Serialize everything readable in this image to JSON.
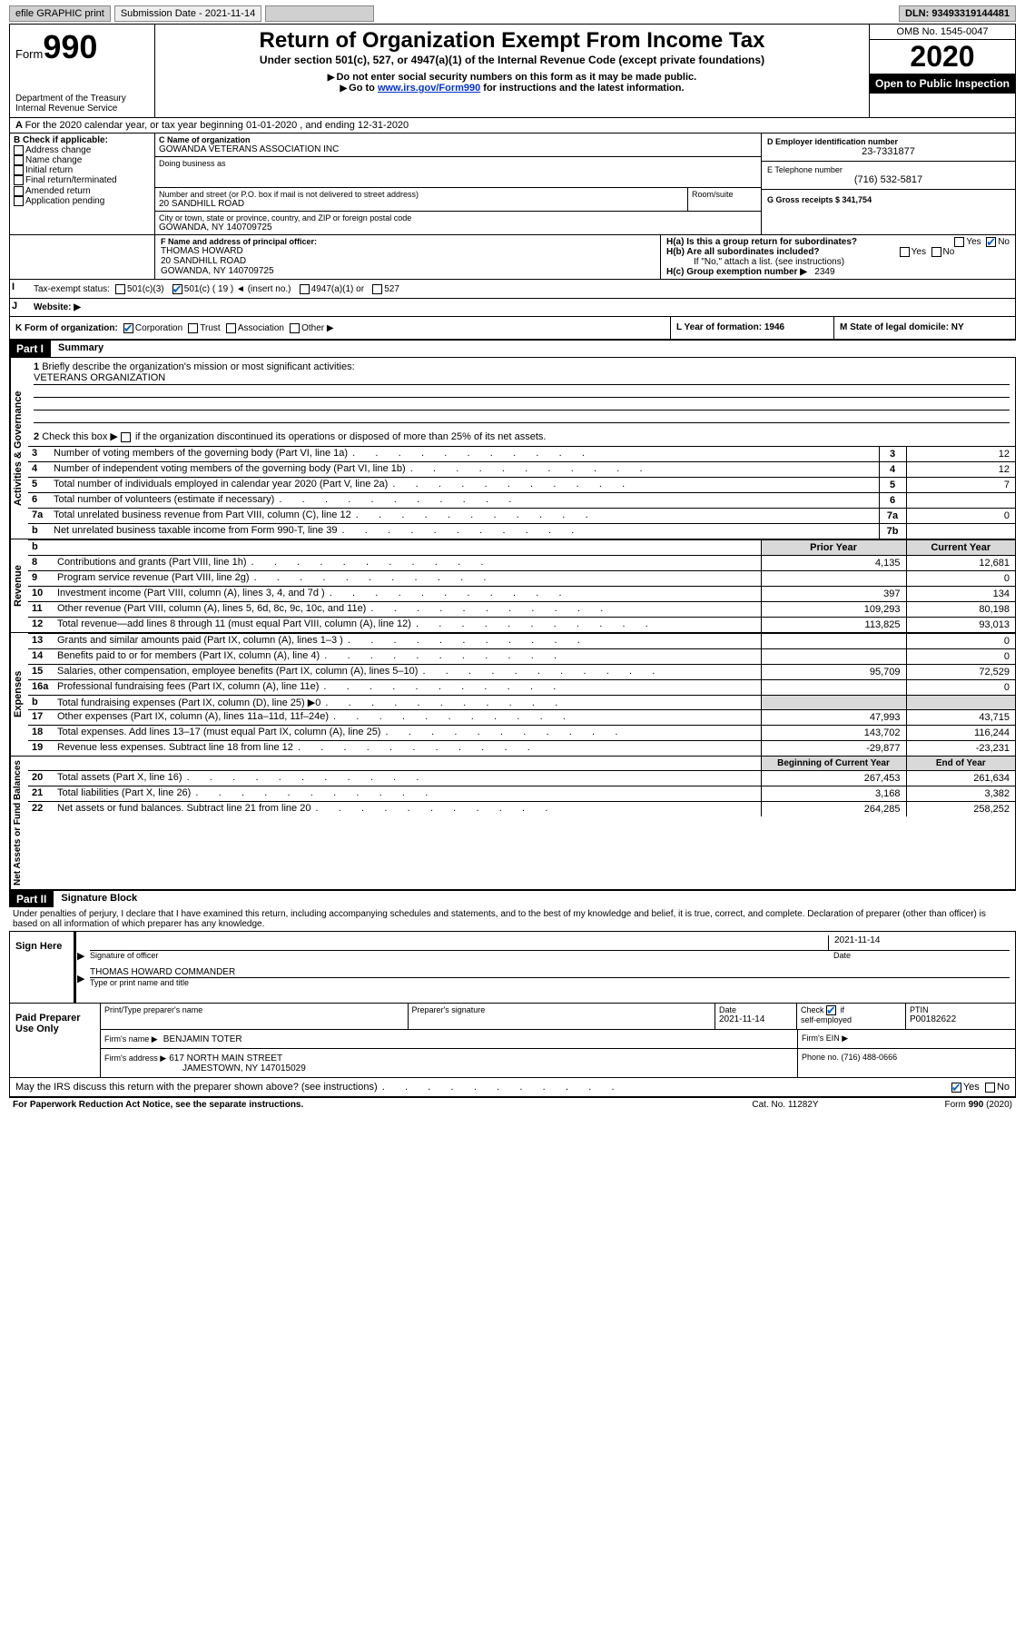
{
  "topbar": {
    "efile": "efile GRAPHIC print",
    "submission_label": "Submission Date - 2021-11-14",
    "dln": "DLN: 93493319144481"
  },
  "header": {
    "form": "Form",
    "form_number": "990",
    "dept": "Department of the Treasury",
    "irs": "Internal Revenue Service",
    "title": "Return of Organization Exempt From Income Tax",
    "subtitle": "Under section 501(c), 527, or 4947(a)(1) of the Internal Revenue Code (except private foundations)",
    "instr1": "Do not enter social security numbers on this form as it may be made public.",
    "instr2_pre": "Go to ",
    "instr2_link": "www.irs.gov/Form990",
    "instr2_post": " for instructions and the latest information.",
    "omb": "OMB No. 1545-0047",
    "year": "2020",
    "inspection": "Open to Public Inspection"
  },
  "sectionA": {
    "a_line": "For the 2020 calendar year, or tax year beginning 01-01-2020    , and ending 12-31-2020",
    "b_label": "B Check if applicable:",
    "b_items": [
      "Address change",
      "Name change",
      "Initial return",
      "Final return/terminated",
      "Amended return",
      "Application pending"
    ],
    "c_label": "C Name of organization",
    "c_name": "GOWANDA VETERANS ASSOCIATION INC",
    "dba_label": "Doing business as",
    "addr_label": "Number and street (or P.O. box if mail is not delivered to street address)",
    "room_label": "Room/suite",
    "addr": "20 SANDHILL ROAD",
    "city_label": "City or town, state or province, country, and ZIP or foreign postal code",
    "city": "GOWANDA, NY  140709725",
    "d_label": "D Employer identification number",
    "d_val": "23-7331877",
    "e_label": "E Telephone number",
    "e_val": "(716) 532-5817",
    "g_label": "G Gross receipts $ 341,754",
    "f_label": "F  Name and address of principal officer:",
    "f_name": "THOMAS HOWARD",
    "f_addr1": "20 SANDHILL ROAD",
    "f_addr2": "GOWANDA, NY  140709725",
    "ha_label": "H(a)  Is this a group return for subordinates?",
    "hb_label": "H(b)  Are all subordinates included?",
    "h_note": "If \"No,\" attach a list. (see instructions)",
    "hc_label": "H(c)  Group exemption number ▶",
    "hc_val": "2349",
    "yes": "Yes",
    "no": "No",
    "i_label": "Tax-exempt status:",
    "i_501c3": "501(c)(3)",
    "i_501c": "501(c) ( 19 ) ◄ (insert no.)",
    "i_4947": "4947(a)(1) or",
    "i_527": "527",
    "j_label": "Website: ▶",
    "k_label": "K Form of organization:",
    "k_corp": "Corporation",
    "k_trust": "Trust",
    "k_assoc": "Association",
    "k_other": "Other ▶",
    "l_label": "L Year of formation: 1946",
    "m_label": "M State of legal domicile: NY"
  },
  "part1": {
    "hdr": "Part I",
    "title": "Summary",
    "q1_label": "Briefly describe the organization's mission or most significant activities:",
    "q1_val": "VETERANS ORGANIZATION",
    "q2": "Check this box ▶        if the organization discontinued its operations or disposed of more than 25% of its net assets.",
    "rows_ag": [
      {
        "n": "3",
        "label": "Number of voting members of the governing body (Part VI, line 1a)",
        "box": "3",
        "val": "12"
      },
      {
        "n": "4",
        "label": "Number of independent voting members of the governing body (Part VI, line 1b)",
        "box": "4",
        "val": "12"
      },
      {
        "n": "5",
        "label": "Total number of individuals employed in calendar year 2020 (Part V, line 2a)",
        "box": "5",
        "val": "7"
      },
      {
        "n": "6",
        "label": "Total number of volunteers (estimate if necessary)",
        "box": "6",
        "val": ""
      },
      {
        "n": "7a",
        "label": "Total unrelated business revenue from Part VIII, column (C), line 12",
        "box": "7a",
        "val": "0"
      },
      {
        "n": "b",
        "label": "Net unrelated business taxable income from Form 990-T, line 39",
        "box": "7b",
        "val": ""
      }
    ],
    "prior": "Prior Year",
    "current": "Current Year",
    "rev_rows": [
      {
        "n": "8",
        "label": "Contributions and grants (Part VIII, line 1h)",
        "p": "4,135",
        "c": "12,681"
      },
      {
        "n": "9",
        "label": "Program service revenue (Part VIII, line 2g)",
        "p": "",
        "c": "0"
      },
      {
        "n": "10",
        "label": "Investment income (Part VIII, column (A), lines 3, 4, and 7d )",
        "p": "397",
        "c": "134"
      },
      {
        "n": "11",
        "label": "Other revenue (Part VIII, column (A), lines 5, 6d, 8c, 9c, 10c, and 11e)",
        "p": "109,293",
        "c": "80,198"
      },
      {
        "n": "12",
        "label": "Total revenue—add lines 8 through 11 (must equal Part VIII, column (A), line 12)",
        "p": "113,825",
        "c": "93,013"
      }
    ],
    "exp_rows": [
      {
        "n": "13",
        "label": "Grants and similar amounts paid (Part IX, column (A), lines 1–3 )",
        "p": "",
        "c": "0"
      },
      {
        "n": "14",
        "label": "Benefits paid to or for members (Part IX, column (A), line 4)",
        "p": "",
        "c": "0"
      },
      {
        "n": "15",
        "label": "Salaries, other compensation, employee benefits (Part IX, column (A), lines 5–10)",
        "p": "95,709",
        "c": "72,529"
      },
      {
        "n": "16a",
        "label": "Professional fundraising fees (Part IX, column (A), line 11e)",
        "p": "",
        "c": "0"
      },
      {
        "n": "b",
        "label": "Total fundraising expenses (Part IX, column (D), line 25) ▶0",
        "p": "GRAY",
        "c": "GRAY"
      },
      {
        "n": "17",
        "label": "Other expenses (Part IX, column (A), lines 11a–11d, 11f–24e)",
        "p": "47,993",
        "c": "43,715"
      },
      {
        "n": "18",
        "label": "Total expenses. Add lines 13–17 (must equal Part IX, column (A), line 25)",
        "p": "143,702",
        "c": "116,244"
      },
      {
        "n": "19",
        "label": "Revenue less expenses. Subtract line 18 from line 12",
        "p": "-29,877",
        "c": "-23,231"
      }
    ],
    "boy": "Beginning of Current Year",
    "eoy": "End of Year",
    "na_rows": [
      {
        "n": "20",
        "label": "Total assets (Part X, line 16)",
        "p": "267,453",
        "c": "261,634"
      },
      {
        "n": "21",
        "label": "Total liabilities (Part X, line 26)",
        "p": "3,168",
        "c": "3,382"
      },
      {
        "n": "22",
        "label": "Net assets or fund balances. Subtract line 21 from line 20",
        "p": "264,285",
        "c": "258,252"
      }
    ],
    "vtext_ag": "Activities & Governance",
    "vtext_rev": "Revenue",
    "vtext_exp": "Expenses",
    "vtext_na": "Net Assets or Fund Balances"
  },
  "part2": {
    "hdr": "Part II",
    "title": "Signature Block",
    "declaration": "Under penalties of perjury, I declare that I have examined this return, including accompanying schedules and statements, and to the best of my knowledge and belief, it is true, correct, and complete. Declaration of preparer (other than officer) is based on all information of which preparer has any knowledge.",
    "sign_here": "Sign Here",
    "sig_officer": "Signature of officer",
    "sig_date": "2021-11-14",
    "date_label": "Date",
    "officer_name": "THOMAS HOWARD  COMMANDER",
    "type_print": "Type or print name and title",
    "paid": "Paid Preparer Use Only",
    "prep_name_label": "Print/Type preparer's name",
    "prep_sig_label": "Preparer's signature",
    "prep_date_label": "Date",
    "prep_date": "2021-11-14",
    "check_if": "Check         if self-employed",
    "ptin_label": "PTIN",
    "ptin": "P00182622",
    "firm_name_label": "Firm's name    ▶",
    "firm_name": "BENJAMIN TOTER",
    "firm_ein_label": "Firm's EIN ▶",
    "firm_addr_label": "Firm's address ▶",
    "firm_addr1": "617 NORTH MAIN STREET",
    "firm_addr2": "JAMESTOWN, NY  147015029",
    "phone_label": "Phone no. (716) 488-0666",
    "discuss": "May the IRS discuss this return with the preparer shown above? (see instructions)",
    "paperwork": "For Paperwork Reduction Act Notice, see the separate instructions.",
    "catno": "Cat. No. 11282Y",
    "form_footer": "Form 990 (2020)"
  },
  "colors": {
    "link": "#0033cc",
    "check": "#0066cc",
    "gray_btn": "#d0d0d0",
    "gray_fill": "#d9d9d9"
  }
}
